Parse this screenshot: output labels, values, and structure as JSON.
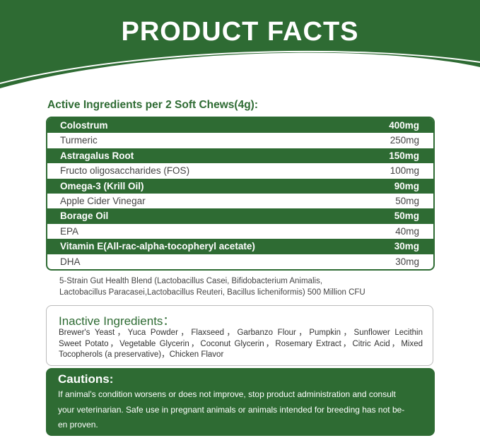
{
  "header": {
    "title": "PRODUCT FACTS"
  },
  "active": {
    "heading": "Active Ingredients per 2 Soft Chews(4g):",
    "rows": [
      [
        "Colostrum",
        "400mg"
      ],
      [
        "Turmeric",
        "250mg"
      ],
      [
        "Astragalus Root",
        "150mg"
      ],
      [
        "Fructo oligosaccharides (FOS)",
        "100mg"
      ],
      [
        "Omega-3 (Krill Oil)",
        "90mg"
      ],
      [
        "Apple Cider Vinegar",
        "50mg"
      ],
      [
        "Borage Oil",
        "50mg"
      ],
      [
        "EPA",
        "40mg"
      ],
      [
        "Vitamin E(All-rac-alpha-tocopheryl acetate)",
        "30mg"
      ],
      [
        "DHA",
        "30mg"
      ]
    ],
    "note": [
      "5-Strain Gut Health Blend (Lactobacillus Casei, Bifidobacterium Animalis,",
      "Lactobacillus Paracasei,Lactobacillus Reuteri, Bacillus licheniformis) 500 Million CFU"
    ]
  },
  "inactive": {
    "heading": "Inactive Ingredients：",
    "lines": [
      "Brewer's Yeast，Yuca Powder，Flaxseed，Garbanzo Flour，Pumpkin，Sunflower Lecithin",
      "Sweet Potato，Vegetable Glycerin，Coconut Glycerin，Rosemary Extract，Citric Acid，Mixed",
      "Tocopherols (a preservative)，Chicken Flavor"
    ]
  },
  "cautions": {
    "heading": "Cautions:",
    "lines": [
      "If animal's condition worsens or does not improve, stop product administration and consult",
      "your veterinarian. Safe use in pregnant animals or animals intended for breeding has not be-",
      "en proven."
    ]
  }
}
